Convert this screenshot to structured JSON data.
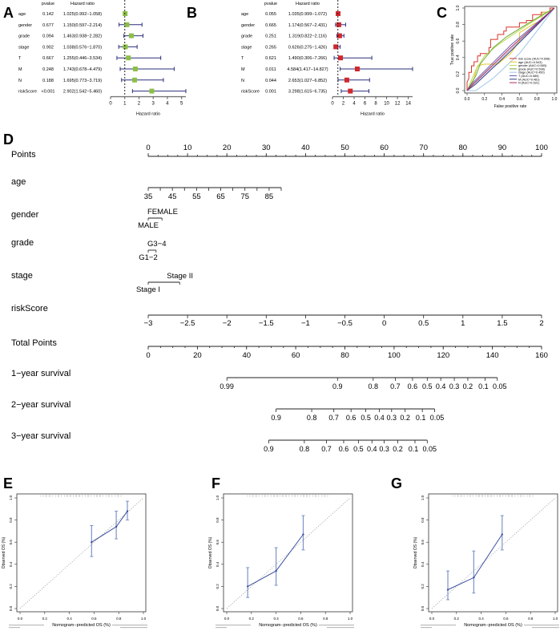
{
  "panel_labels": {
    "A": "A",
    "B": "B",
    "C": "C",
    "D": "D",
    "E": "E",
    "F": "F",
    "G": "G"
  },
  "chart_data": [
    {
      "id": "A",
      "type": "forest",
      "title": "",
      "col_headers": {
        "pvalue": "pvalue",
        "hr": "Hazard ratio"
      },
      "xlabel": "Hazard ratio",
      "xlim": [
        0,
        5.3
      ],
      "xticks": [
        0,
        1,
        2,
        3,
        4,
        5
      ],
      "ref_line": 1,
      "marker_color": "#8cbf45",
      "ci_color": "#2b2f7a",
      "rows": [
        {
          "var": "age",
          "pvalue": "0.142",
          "hr_text": "1.025(0.992−1.058)",
          "hr": 1.025,
          "lo": 0.992,
          "hi": 1.058
        },
        {
          "var": "gender",
          "pvalue": "0.677",
          "hr_text": "1.150(0.597−2.214)",
          "hr": 1.15,
          "lo": 0.597,
          "hi": 2.214
        },
        {
          "var": "grade",
          "pvalue": "0.094",
          "hr_text": "1.463(0.938−2.282)",
          "hr": 1.463,
          "lo": 0.938,
          "hi": 2.282
        },
        {
          "var": "stage",
          "pvalue": "0.902",
          "hr_text": "1.038(0.576−1.870)",
          "hr": 1.038,
          "lo": 0.576,
          "hi": 1.87
        },
        {
          "var": "T",
          "pvalue": "0.667",
          "hr_text": "1.255(0.446−3.534)",
          "hr": 1.255,
          "lo": 0.446,
          "hi": 3.534
        },
        {
          "var": "M",
          "pvalue": "0.248",
          "hr_text": "1.743(0.678−4.479)",
          "hr": 1.743,
          "lo": 0.678,
          "hi": 4.479
        },
        {
          "var": "N",
          "pvalue": "0.188",
          "hr_text": "1.695(0.773−3.719)",
          "hr": 1.695,
          "lo": 0.773,
          "hi": 3.719
        },
        {
          "var": "riskScore",
          "pvalue": "<0.001",
          "hr_text": "2.902(1.542−5.460)",
          "hr": 2.902,
          "lo": 1.542,
          "hi": 5.46
        }
      ]
    },
    {
      "id": "B",
      "type": "forest",
      "title": "",
      "col_headers": {
        "pvalue": "pvalue",
        "hr": "Hazard ratio"
      },
      "xlabel": "Hazard ratio",
      "xlim": [
        0,
        14.8
      ],
      "xticks": [
        0,
        2,
        4,
        6,
        8,
        10,
        12,
        14
      ],
      "ref_line": 1,
      "marker_color": "#d1272e",
      "ci_color": "#2b2f7a",
      "rows": [
        {
          "var": "age",
          "pvalue": "0.055",
          "hr_text": "1.035(0.999−1.072)",
          "hr": 1.035,
          "lo": 0.999,
          "hi": 1.072
        },
        {
          "var": "gender",
          "pvalue": "0.665",
          "hr_text": "1.174(0.567−2.431)",
          "hr": 1.174,
          "lo": 0.567,
          "hi": 2.431
        },
        {
          "var": "grade",
          "pvalue": "0.251",
          "hr_text": "1.319(0.822−2.116)",
          "hr": 1.319,
          "lo": 0.822,
          "hi": 2.116
        },
        {
          "var": "stage",
          "pvalue": "0.265",
          "hr_text": "0.626(0.275−1.426)",
          "hr": 0.626,
          "lo": 0.275,
          "hi": 1.426
        },
        {
          "var": "T",
          "pvalue": "0.621",
          "hr_text": "1.490(0.306−7.266)",
          "hr": 1.49,
          "lo": 0.306,
          "hi": 7.266
        },
        {
          "var": "M",
          "pvalue": "0.011",
          "hr_text": "4.584(1.417−14.827)",
          "hr": 4.584,
          "lo": 1.417,
          "hi": 14.827
        },
        {
          "var": "N",
          "pvalue": "0.044",
          "hr_text": "2.653(1.027−6.852)",
          "hr": 2.653,
          "lo": 1.027,
          "hi": 6.852
        },
        {
          "var": "riskScore",
          "pvalue": "0.001",
          "hr_text": "3.298(1.615−6.735)",
          "hr": 3.298,
          "lo": 1.615,
          "hi": 6.735
        }
      ]
    },
    {
      "id": "C",
      "type": "line",
      "title": "",
      "xlabel": "False positive rate",
      "ylabel": "True positive rate",
      "xlim": [
        0,
        1
      ],
      "ylim": [
        0,
        1
      ],
      "xticks": [
        "0.0",
        "0.2",
        "0.4",
        "0.6",
        "0.8",
        "1.0"
      ],
      "yticks": [
        "0.0",
        "0.2",
        "0.4",
        "0.6",
        "0.8",
        "1.0"
      ],
      "legend_position": "bottom-right",
      "series": [
        {
          "name": "risk score (AUC=0.698)",
          "color": "#d9342b",
          "points": [
            [
              0,
              0
            ],
            [
              0,
              0.1
            ],
            [
              0.02,
              0.15
            ],
            [
              0.02,
              0.22
            ],
            [
              0.05,
              0.22
            ],
            [
              0.05,
              0.3
            ],
            [
              0.08,
              0.3
            ],
            [
              0.08,
              0.35
            ],
            [
              0.12,
              0.35
            ],
            [
              0.12,
              0.42
            ],
            [
              0.15,
              0.42
            ],
            [
              0.15,
              0.45
            ],
            [
              0.25,
              0.45
            ],
            [
              0.25,
              0.52
            ],
            [
              0.27,
              0.52
            ],
            [
              0.27,
              0.62
            ],
            [
              0.35,
              0.62
            ],
            [
              0.35,
              0.68
            ],
            [
              0.42,
              0.68
            ],
            [
              0.42,
              0.72
            ],
            [
              0.45,
              0.72
            ],
            [
              0.45,
              0.77
            ],
            [
              0.6,
              0.77
            ],
            [
              0.6,
              0.82
            ],
            [
              0.68,
              0.82
            ],
            [
              0.68,
              0.85
            ],
            [
              0.75,
              0.85
            ],
            [
              0.75,
              0.92
            ],
            [
              0.85,
              0.92
            ],
            [
              0.85,
              0.95
            ],
            [
              0.95,
              0.95
            ],
            [
              0.95,
              1
            ],
            [
              1,
              1
            ]
          ]
        },
        {
          "name": "age (AUC=0.543)",
          "color": "#e8c82c",
          "points": [
            [
              0,
              0
            ],
            [
              0.05,
              0.05
            ],
            [
              0.08,
              0.15
            ],
            [
              0.12,
              0.3
            ],
            [
              0.2,
              0.32
            ],
            [
              0.35,
              0.32
            ],
            [
              0.5,
              0.45
            ],
            [
              0.6,
              0.6
            ],
            [
              0.6,
              0.7
            ],
            [
              0.75,
              0.8
            ],
            [
              0.85,
              0.85
            ],
            [
              0.87,
              0.95
            ],
            [
              0.95,
              0.95
            ],
            [
              1,
              1
            ]
          ]
        },
        {
          "name": "gender (AUC=0.583)",
          "color": "#b8d84a",
          "points": [
            [
              0,
              0
            ],
            [
              0.1,
              0.25
            ],
            [
              0.2,
              0.42
            ],
            [
              0.35,
              0.55
            ],
            [
              0.5,
              0.66
            ],
            [
              0.7,
              0.8
            ],
            [
              0.85,
              0.9
            ],
            [
              1,
              1
            ]
          ]
        },
        {
          "name": "grade (AUC=0.598)",
          "color": "#6fa83d",
          "points": [
            [
              0,
              0
            ],
            [
              0.1,
              0.18
            ],
            [
              0.15,
              0.32
            ],
            [
              0.3,
              0.52
            ],
            [
              0.45,
              0.65
            ],
            [
              0.6,
              0.75
            ],
            [
              0.8,
              0.88
            ],
            [
              1,
              1
            ]
          ]
        },
        {
          "name": "stage (AUC=0.450)",
          "color": "#9ec6e8",
          "points": [
            [
              0,
              0
            ],
            [
              0.1,
              0
            ],
            [
              0.3,
              0.15
            ],
            [
              0.6,
              0.45
            ],
            [
              0.8,
              0.72
            ],
            [
              1,
              1
            ]
          ]
        },
        {
          "name": "T (AUC=0.585)",
          "color": "#6a5fb0",
          "points": [
            [
              0,
              0
            ],
            [
              0.05,
              0.08
            ],
            [
              0.5,
              0.55
            ],
            [
              1,
              1
            ]
          ]
        },
        {
          "name": "M (AUC=0.481)",
          "color": "#2d3a8c",
          "points": [
            [
              0,
              0
            ],
            [
              0.1,
              0.08
            ],
            [
              0.5,
              0.48
            ],
            [
              1,
              1
            ]
          ]
        },
        {
          "name": "N (AUC=0.521)",
          "color": "#b02a6a",
          "points": [
            [
              0,
              0
            ],
            [
              0.05,
              0.06
            ],
            [
              0.5,
              0.52
            ],
            [
              1,
              1
            ]
          ]
        }
      ]
    },
    {
      "id": "D",
      "type": "nomogram",
      "rows": [
        {
          "label": "Points",
          "kind": "points",
          "axis": {
            "min": 0,
            "max": 100,
            "major": [
              0,
              10,
              20,
              30,
              40,
              50,
              60,
              70,
              80,
              90,
              100
            ],
            "minor_step": 2.5,
            "labels_above": true
          }
        },
        {
          "label": "age",
          "kind": "continuous",
          "points_range": [
            0,
            33.6
          ],
          "ticks": [
            "35",
            "45",
            "55",
            "65",
            "75",
            "85"
          ],
          "tick_values": [
            35,
            40,
            45,
            50,
            55,
            60,
            65,
            70,
            75,
            80,
            85,
            90
          ],
          "labeled_values": [
            35,
            45,
            55,
            65,
            75,
            85
          ],
          "range": [
            35,
            90
          ]
        },
        {
          "label": "gender",
          "kind": "categorical",
          "levels": [
            {
              "name": "MALE",
              "points": 0,
              "pos": "below"
            },
            {
              "name": "FEMALE",
              "points": 3.5,
              "pos": "above"
            }
          ]
        },
        {
          "label": "grade",
          "kind": "categorical",
          "levels": [
            {
              "name": "G1−2",
              "points": 0,
              "pos": "below"
            },
            {
              "name": "G3−4",
              "points": 2,
              "pos": "above"
            }
          ]
        },
        {
          "label": "stage",
          "kind": "categorical",
          "levels": [
            {
              "name": "Stage I",
              "points": 0,
              "pos": "below"
            },
            {
              "name": "Stage II",
              "points": 8,
              "pos": "above"
            }
          ]
        },
        {
          "label": "riskScore",
          "kind": "continuous",
          "points_range": [
            0,
            100
          ],
          "ticks": [
            "−3",
            "−2.5",
            "−2",
            "−1.5",
            "−1",
            "−0.5",
            "0",
            "0.5",
            "1",
            "1.5",
            "2"
          ]
        },
        {
          "label": "Total Points",
          "kind": "total",
          "axis": {
            "min": 0,
            "max": 160,
            "major": [
              0,
              20,
              40,
              60,
              80,
              100,
              120,
              140,
              160
            ],
            "minor_step": 5
          }
        },
        {
          "label": "1−year survival",
          "kind": "survival",
          "ticks": [
            {
              "t": "0.99",
              "tp": 32
            },
            {
              "t": "0.9",
              "tp": 77
            },
            {
              "t": "0.8",
              "tp": 91.5
            },
            {
              "t": "0.7",
              "tp": 100.5
            },
            {
              "t": "0.6",
              "tp": 107.5
            },
            {
              "t": "0.5",
              "tp": 113.5
            },
            {
              "t": "0.4",
              "tp": 119
            },
            {
              "t": "0.3",
              "tp": 124.5
            },
            {
              "t": "0.2",
              "tp": 130
            },
            {
              "t": "0.1",
              "tp": 137
            },
            {
              "t": "0.05",
              "tp": 142
            }
          ]
        },
        {
          "label": "2−year survival",
          "kind": "survival",
          "ticks": [
            {
              "t": "0.9",
              "tp": 52
            },
            {
              "t": "0.8",
              "tp": 66.5
            },
            {
              "t": "0.7",
              "tp": 75.5
            },
            {
              "t": "0.6",
              "tp": 82.5
            },
            {
              "t": "0.5",
              "tp": 88.5
            },
            {
              "t": "0.4",
              "tp": 94
            },
            {
              "t": "0.3",
              "tp": 99
            },
            {
              "t": "0.2",
              "tp": 104.5
            },
            {
              "t": "0.1",
              "tp": 111.5
            },
            {
              "t": "0.05",
              "tp": 116.5
            }
          ]
        },
        {
          "label": "3−year survival",
          "kind": "survival",
          "ticks": [
            {
              "t": "0.9",
              "tp": 49
            },
            {
              "t": "0.8",
              "tp": 63.5
            },
            {
              "t": "0.7",
              "tp": 72.5
            },
            {
              "t": "0.6",
              "tp": 79.5
            },
            {
              "t": "0.5",
              "tp": 85.5
            },
            {
              "t": "0.4",
              "tp": 91
            },
            {
              "t": "0.3",
              "tp": 96
            },
            {
              "t": "0.2",
              "tp": 101.5
            },
            {
              "t": "0.1",
              "tp": 108.5
            },
            {
              "t": "0.05",
              "tp": 113.5
            }
          ]
        }
      ]
    },
    {
      "id": "E",
      "type": "line",
      "title": "",
      "xlabel": "Nomogram−predicted OS (%)",
      "ylabel": "Observed OS (%)",
      "xlim": [
        0,
        1
      ],
      "ylim": [
        0,
        1
      ],
      "xticks": [
        "0.0",
        "0.2",
        "0.4",
        "0.6",
        "0.8",
        "1.0"
      ],
      "yticks": [
        "0.0",
        "0.2",
        "0.4",
        "0.6",
        "0.8",
        "1.0"
      ],
      "line_color": "#3c4fa0",
      "points": [
        {
          "x": 0.58,
          "y": 0.6,
          "lo": 0.47,
          "hi": 0.75
        },
        {
          "x": 0.78,
          "y": 0.74,
          "lo": 0.63,
          "hi": 0.88
        },
        {
          "x": 0.87,
          "y": 0.88,
          "lo": 0.8,
          "hi": 0.97
        }
      ]
    },
    {
      "id": "F",
      "type": "line",
      "title": "",
      "xlabel": "Nomogram−predicted OS (%)",
      "ylabel": "Observed OS (%)",
      "xlim": [
        0,
        1
      ],
      "ylim": [
        0,
        1
      ],
      "xticks": [
        "0.0",
        "0.2",
        "0.4",
        "0.6",
        "0.8",
        "1.0"
      ],
      "yticks": [
        "0.0",
        "0.2",
        "0.4",
        "0.6",
        "0.8",
        "1.0"
      ],
      "line_color": "#3c4fa0",
      "points": [
        {
          "x": 0.17,
          "y": 0.2,
          "lo": 0.1,
          "hi": 0.37
        },
        {
          "x": 0.4,
          "y": 0.34,
          "lo": 0.21,
          "hi": 0.55
        },
        {
          "x": 0.62,
          "y": 0.67,
          "lo": 0.53,
          "hi": 0.84
        }
      ]
    },
    {
      "id": "G",
      "type": "line",
      "title": "",
      "xlabel": "Nomogram−predicted OS (%)",
      "ylabel": "Observed OS (%)",
      "xlim": [
        0,
        1
      ],
      "ylim": [
        0,
        1
      ],
      "xticks": [
        "0.0",
        "0.2",
        "0.4",
        "0.6",
        "0.8",
        "1.0"
      ],
      "yticks": [
        "0.0",
        "0.2",
        "0.4",
        "0.6",
        "0.8",
        "1.0"
      ],
      "line_color": "#3c4fa0",
      "points": [
        {
          "x": 0.13,
          "y": 0.17,
          "lo": 0.08,
          "hi": 0.34
        },
        {
          "x": 0.34,
          "y": 0.28,
          "lo": 0.14,
          "hi": 0.52
        },
        {
          "x": 0.57,
          "y": 0.67,
          "lo": 0.53,
          "hi": 0.84
        }
      ]
    }
  ]
}
